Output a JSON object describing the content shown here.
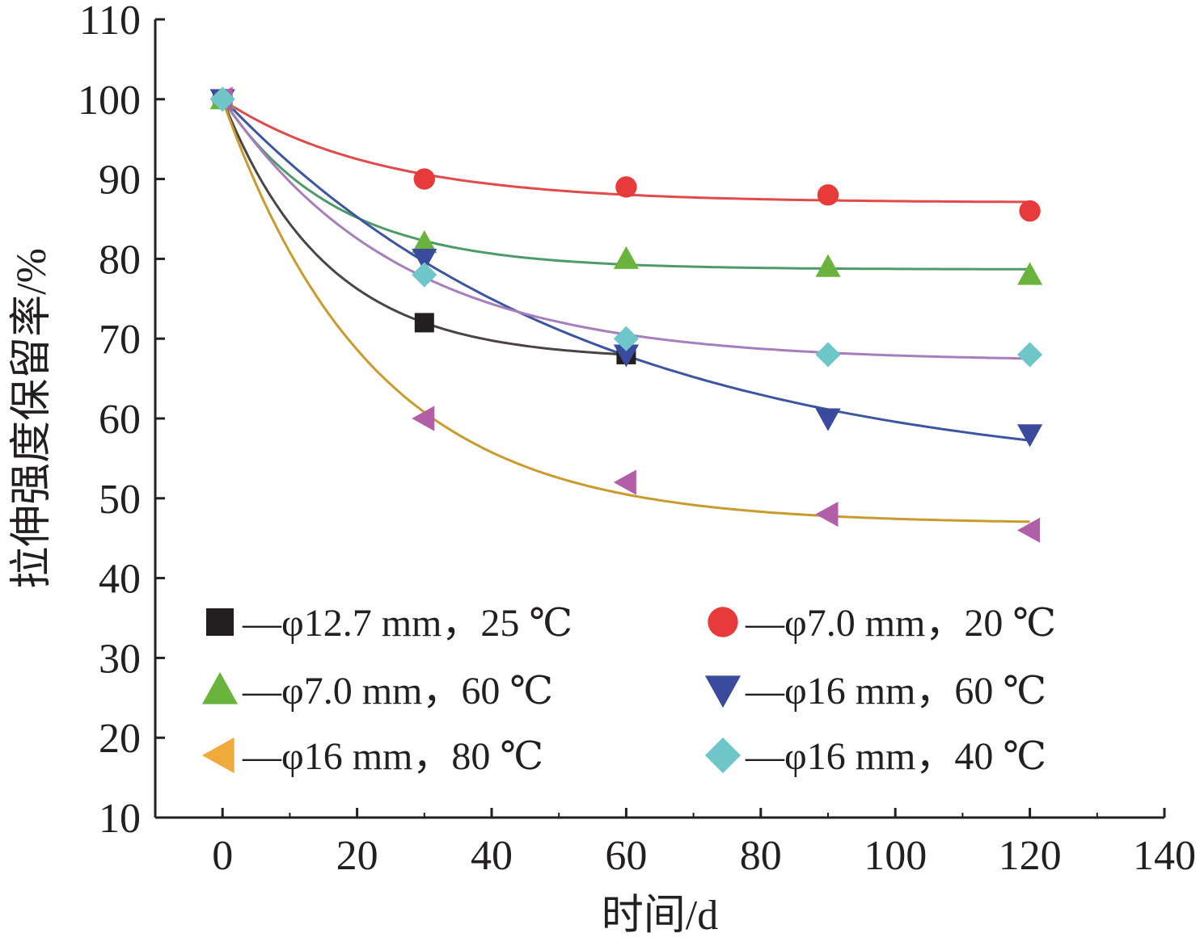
{
  "chart_data": {
    "type": "scatter",
    "xlabel": "时间/d",
    "ylabel": "拉伸强度保留率/%",
    "xlim": [
      -10,
      140
    ],
    "ylim": [
      10,
      110
    ],
    "xticks": [
      0,
      20,
      40,
      60,
      80,
      100,
      120,
      140
    ],
    "yticks": [
      10,
      20,
      30,
      40,
      50,
      60,
      70,
      80,
      90,
      100,
      110
    ],
    "xtick_labels": [
      "0",
      "20",
      "40",
      "60",
      "80",
      "100",
      "120",
      "140"
    ],
    "ytick_labels": [
      "10",
      "20",
      "30",
      "40",
      "50",
      "60",
      "70",
      "80",
      "90",
      "100",
      "110"
    ],
    "grid": false,
    "legend_position": "bottom-inside, two columns",
    "series": [
      {
        "name": "—φ12.7 mm，25 ℃",
        "marker": "square",
        "marker_color": "#231f20",
        "line_color": "#4a4446",
        "x": [
          0,
          30,
          60
        ],
        "y": [
          100,
          72,
          68
        ],
        "fit": {
          "type": "exp",
          "x_end": 60
        }
      },
      {
        "name": "—φ7.0 mm，20 ℃",
        "marker": "circle",
        "marker_color": "#e83a3b",
        "line_color": "#e04a4a",
        "x": [
          0,
          30,
          60,
          90,
          120
        ],
        "y": [
          100,
          90,
          89,
          88,
          86
        ],
        "fit": {
          "type": "exp",
          "x_end": 120
        }
      },
      {
        "name": "—φ7.0 mm，60 ℃",
        "marker": "triangle-up",
        "marker_color": "#6ab43e",
        "line_color": "#4e9a68",
        "x": [
          0,
          30,
          60,
          90,
          120
        ],
        "y": [
          100,
          82,
          80,
          79,
          78
        ],
        "fit": {
          "type": "exp",
          "x_end": 120
        }
      },
      {
        "name": "—φ16 mm，60 ℃",
        "marker": "triangle-down",
        "marker_color": "#3a4a9c",
        "line_color": "#3b55a0",
        "x": [
          0,
          30,
          60,
          90,
          120
        ],
        "y": [
          100,
          80,
          68,
          60,
          58
        ],
        "fit": {
          "type": "exp",
          "x_end": 120
        }
      },
      {
        "name": "—φ16 mm，80 ℃",
        "marker": "triangle-left",
        "marker_color": "#f0a93b",
        "marker_color_plot": "#b25fa8",
        "line_color": "#c99a2e",
        "x": [
          0,
          30,
          60,
          90,
          120
        ],
        "y": [
          100,
          60,
          52,
          48,
          46
        ],
        "fit": {
          "type": "exp",
          "x_end": 120
        }
      },
      {
        "name": "—φ16 mm，40 ℃",
        "marker": "diamond",
        "marker_color": "#6fc6c8",
        "line_color": "#a57ebb",
        "x": [
          0,
          30,
          60,
          90,
          120
        ],
        "y": [
          100,
          78,
          70,
          68,
          68
        ],
        "fit": {
          "type": "exp",
          "x_end": 120
        }
      }
    ]
  }
}
